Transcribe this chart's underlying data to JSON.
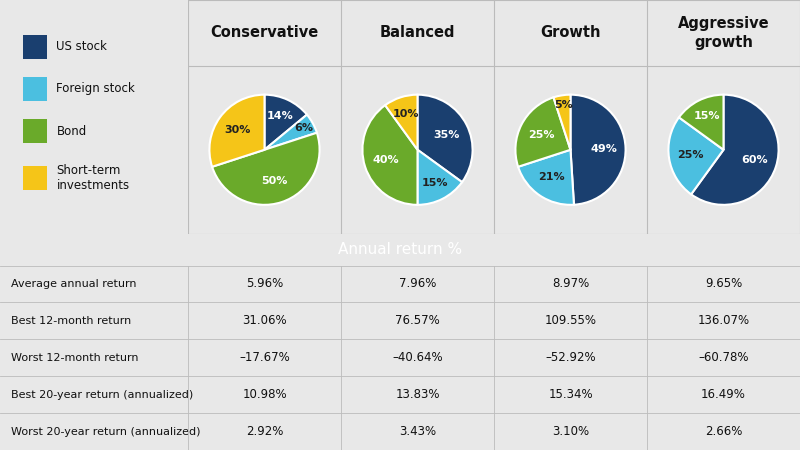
{
  "legend_items": [
    {
      "label": "US stock",
      "color": "#1a3f6f"
    },
    {
      "label": "Foreign stock",
      "color": "#4bbfe0"
    },
    {
      "label": "Bond",
      "color": "#6aaa2a"
    },
    {
      "label": "Short-term\ninvestments",
      "color": "#f5c518"
    }
  ],
  "pie_colors": [
    "#1a3f6f",
    "#4bbfe0",
    "#6aaa2a",
    "#f5c518"
  ],
  "portfolios": [
    {
      "name": "Conservative",
      "slices": [
        14,
        6,
        50,
        30
      ],
      "labels": [
        "14%",
        "6%",
        "50%",
        "30%"
      ],
      "label_colors": [
        "white",
        "#333333",
        "white",
        "#333333"
      ]
    },
    {
      "name": "Balanced",
      "slices": [
        35,
        15,
        40,
        10
      ],
      "labels": [
        "35%",
        "15%",
        "40%",
        "10%"
      ],
      "label_colors": [
        "white",
        "#333333",
        "white",
        "#333333"
      ]
    },
    {
      "name": "Growth",
      "slices": [
        49,
        21,
        25,
        5
      ],
      "labels": [
        "49%",
        "21%",
        "25%",
        "5%"
      ],
      "label_colors": [
        "white",
        "#333333",
        "white",
        "#333333"
      ]
    },
    {
      "name": "Aggressive\ngrowth",
      "slices": [
        60,
        25,
        15,
        0
      ],
      "labels": [
        "60%",
        "25%",
        "15%",
        ""
      ],
      "label_colors": [
        "white",
        "#333333",
        "white",
        ""
      ]
    }
  ],
  "table_header": "Annual return %",
  "table_rows": [
    {
      "label": "Average annual return",
      "values": [
        "5.96%",
        "7.96%",
        "8.97%",
        "9.65%"
      ]
    },
    {
      "label": "Best 12-month return",
      "values": [
        "31.06%",
        "76.57%",
        "109.55%",
        "136.07%"
      ]
    },
    {
      "label": "Worst 12-month return",
      "values": [
        "–17.67%",
        "–40.64%",
        "–52.92%",
        "–60.78%"
      ]
    },
    {
      "label": "Best 20-year return (annualized)",
      "values": [
        "10.98%",
        "13.83%",
        "15.34%",
        "16.49%"
      ]
    },
    {
      "label": "Worst 20-year return (annualized)",
      "values": [
        "2.92%",
        "3.43%",
        "3.10%",
        "2.66%"
      ]
    }
  ],
  "bg_color": "#e8e8e8",
  "table_bg": "#f0f0f0",
  "header_bg": "#7a7a7a",
  "header_text_color": "#ffffff",
  "border_color": "#bbbbbb",
  "pie_section_bg": "#e0e0e0",
  "col_header_bg": "#e0e0e0"
}
